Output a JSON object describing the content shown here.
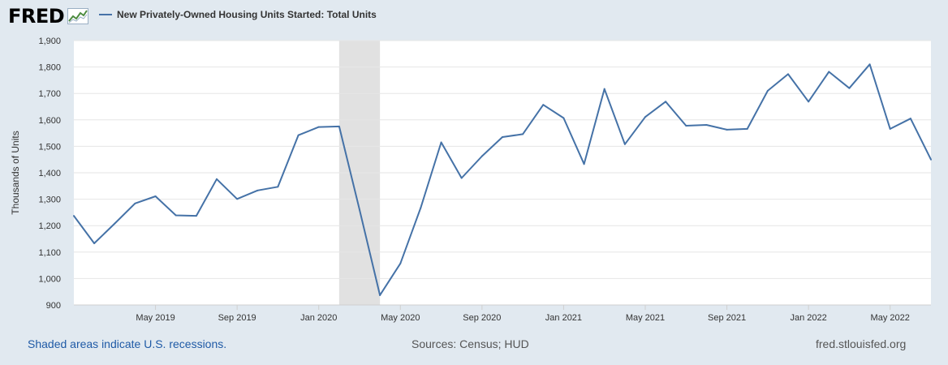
{
  "header": {
    "logo": "FRED",
    "legend_label": "New Privately-Owned Housing Units Started: Total Units"
  },
  "footer": {
    "note": "Shaded areas indicate U.S. recessions.",
    "sources": "Sources: Census; HUD",
    "site": "fred.stlouisfed.org"
  },
  "colors": {
    "series": "#4572a7",
    "recession": "#e1e1e1",
    "page_bg": "#e1e9f0",
    "plot_bg": "#ffffff",
    "grid": "#e6e6e6",
    "note_link": "#1f5aa6"
  },
  "chart_data": {
    "type": "line",
    "title": "",
    "ylabel": "Thousands of Units",
    "xlabel": "",
    "ylim": [
      900,
      1900
    ],
    "yticks": [
      900,
      1000,
      1100,
      1200,
      1300,
      1400,
      1500,
      1600,
      1700,
      1800,
      1900
    ],
    "ytick_labels": [
      "900",
      "1,000",
      "1,100",
      "1,200",
      "1,300",
      "1,400",
      "1,500",
      "1,600",
      "1,700",
      "1,800",
      "1,900"
    ],
    "xlim": [
      "2019-01",
      "2022-07"
    ],
    "xticks": [
      "2019-05",
      "2019-09",
      "2020-01",
      "2020-05",
      "2020-09",
      "2021-01",
      "2021-05",
      "2021-09",
      "2022-01",
      "2022-05"
    ],
    "xtick_labels": [
      "May 2019",
      "Sep 2019",
      "Jan 2020",
      "May 2020",
      "Sep 2020",
      "Jan 2021",
      "May 2021",
      "Sep 2021",
      "Jan 2022",
      "May 2022"
    ],
    "grid": true,
    "recessions": [
      {
        "start": "2020-02",
        "end": "2020-04"
      }
    ],
    "series": [
      {
        "name": "New Privately-Owned Housing Units Started: Total Units",
        "x": [
          "2019-01",
          "2019-02",
          "2019-03",
          "2019-04",
          "2019-05",
          "2019-06",
          "2019-07",
          "2019-08",
          "2019-09",
          "2019-10",
          "2019-11",
          "2019-12",
          "2020-01",
          "2020-02",
          "2020-03",
          "2020-04",
          "2020-05",
          "2020-06",
          "2020-07",
          "2020-08",
          "2020-09",
          "2020-10",
          "2020-11",
          "2020-12",
          "2021-01",
          "2021-02",
          "2021-03",
          "2021-04",
          "2021-05",
          "2021-06",
          "2021-07",
          "2021-08",
          "2021-09",
          "2021-10",
          "2021-11",
          "2021-12",
          "2022-01",
          "2022-02",
          "2022-03",
          "2022-04",
          "2022-05",
          "2022-06",
          "2022-07"
        ],
        "values": [
          1237,
          1133,
          1208,
          1284,
          1311,
          1239,
          1237,
          1376,
          1301,
          1333,
          1347,
          1542,
          1573,
          1575,
          1260,
          937,
          1057,
          1268,
          1515,
          1380,
          1463,
          1535,
          1546,
          1657,
          1607,
          1433,
          1717,
          1508,
          1611,
          1669,
          1578,
          1581,
          1563,
          1566,
          1710,
          1773,
          1669,
          1782,
          1720,
          1810,
          1566,
          1605,
          1450
        ]
      }
    ]
  }
}
